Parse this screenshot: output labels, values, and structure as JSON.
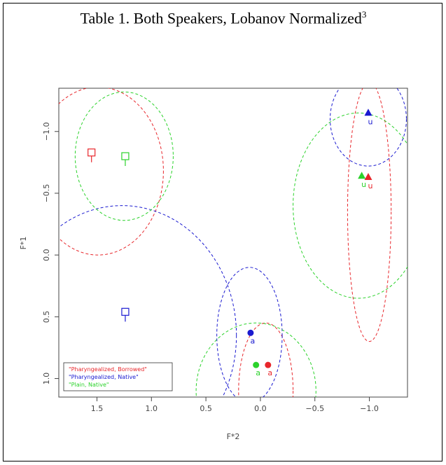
{
  "title": "Table 1. Both Speakers, Lobanov Normalized",
  "title_footnote": "3",
  "chart_data": {
    "type": "scatter",
    "xlabel": "F*2",
    "ylabel": "F*1",
    "xlim": [
      1.85,
      -1.35
    ],
    "ylim": [
      1.15,
      -1.35
    ],
    "x_reversed": true,
    "y_reversed": true,
    "xticks": [
      1.5,
      1.0,
      0.5,
      0.0,
      -0.5,
      -1.0
    ],
    "xtick_labels": [
      "1.5",
      "1.0",
      "0.5",
      "0.0",
      "−0.5",
      "−1.0"
    ],
    "yticks": [
      -1.0,
      -0.5,
      0.0,
      0.5,
      1.0
    ],
    "ytick_labels": [
      "−1.0",
      "−0.5",
      "0.0",
      "0.5",
      "1.0"
    ],
    "legend_position": "bottom-left",
    "series": [
      {
        "name": "\"Pharyngealized, Borrowed\"",
        "color": "#e8262b",
        "points": [
          {
            "label": "i",
            "x": 1.55,
            "y": -0.83,
            "marker": "square"
          },
          {
            "label": "a",
            "x": -0.07,
            "y": 0.89,
            "marker": "circle"
          },
          {
            "label": "u",
            "x": -0.99,
            "y": -0.63,
            "marker": "triangle"
          }
        ],
        "ellipses": [
          {
            "cx": 1.49,
            "cy": -0.68,
            "rx": 0.6,
            "ry": 0.68
          },
          {
            "cx": -0.05,
            "cy": 1.1,
            "rx": 0.25,
            "ry": 0.55
          },
          {
            "cx": -1.0,
            "cy": -0.35,
            "rx": 0.2,
            "ry": 1.05
          }
        ]
      },
      {
        "name": "\"Pharyngealized, Native\"",
        "color": "#1a1ad0",
        "points": [
          {
            "label": "i",
            "x": 1.24,
            "y": 0.46,
            "marker": "square"
          },
          {
            "label": "a",
            "x": 0.09,
            "y": 0.63,
            "marker": "circle"
          },
          {
            "label": "u",
            "x": -0.99,
            "y": -1.15,
            "marker": "triangle"
          }
        ],
        "ellipses": [
          {
            "cx": 1.27,
            "cy": 0.65,
            "rx": 1.05,
            "ry": 1.05
          },
          {
            "cx": 0.1,
            "cy": 0.65,
            "rx": 0.3,
            "ry": 0.55
          },
          {
            "cx": -0.99,
            "cy": -1.1,
            "rx": 0.35,
            "ry": 0.38
          }
        ]
      },
      {
        "name": "\"Plain, Native\"",
        "color": "#2bd22b",
        "points": [
          {
            "label": "i",
            "x": 1.24,
            "y": -0.8,
            "marker": "square"
          },
          {
            "label": "a",
            "x": 0.04,
            "y": 0.89,
            "marker": "circle"
          },
          {
            "label": "u",
            "x": -0.93,
            "y": -0.64,
            "marker": "triangle"
          }
        ],
        "ellipses": [
          {
            "cx": 1.25,
            "cy": -0.8,
            "rx": 0.45,
            "ry": 0.52
          },
          {
            "cx": 0.04,
            "cy": 1.1,
            "rx": 0.55,
            "ry": 0.55
          },
          {
            "cx": -0.9,
            "cy": -0.4,
            "rx": 0.6,
            "ry": 0.75
          }
        ]
      }
    ]
  }
}
